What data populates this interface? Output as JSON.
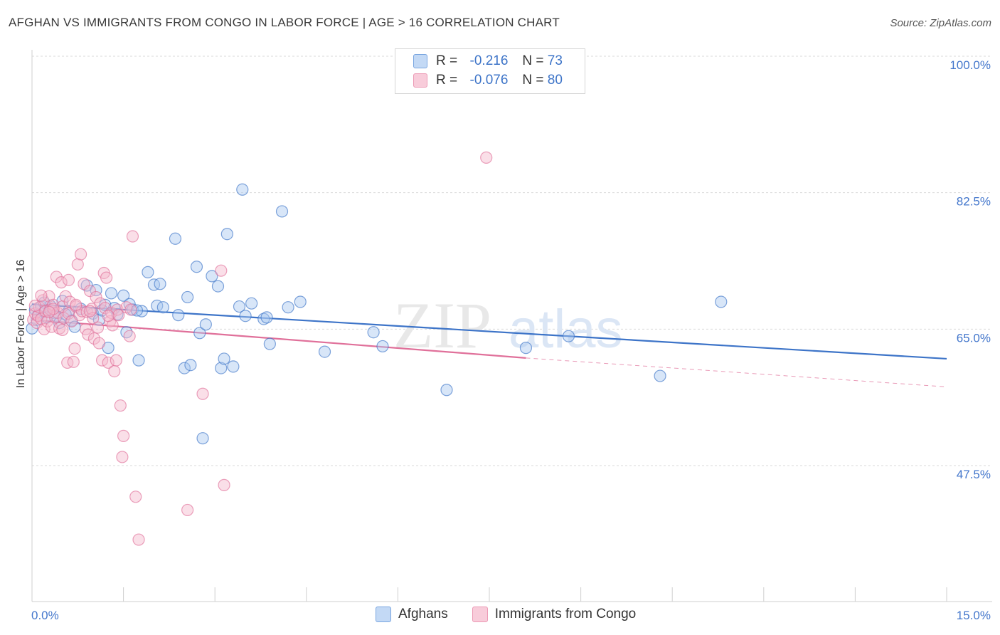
{
  "header": {
    "title": "AFGHAN VS IMMIGRANTS FROM CONGO IN LABOR FORCE | AGE > 16 CORRELATION CHART",
    "source": "Source: ZipAtlas.com"
  },
  "watermark": {
    "zip": "ZIP",
    "atlas": "atlas"
  },
  "legend": {
    "rows": [
      {
        "r_label": "R =",
        "r_value": "-0.216",
        "n_label": "N =",
        "n_value": "73",
        "color": "#a8c8f0"
      },
      {
        "r_label": "R =",
        "r_value": "-0.076",
        "n_label": "N =",
        "n_value": "80",
        "color": "#f5b8cb"
      }
    ]
  },
  "bottom_legend": {
    "items": [
      {
        "label": "Afghans",
        "color": "#a8c8f0"
      },
      {
        "label": "Immigrants from Congo",
        "color": "#f5b8cb"
      }
    ]
  },
  "chart_data": {
    "type": "scatter",
    "title": "AFGHAN VS IMMIGRANTS FROM CONGO IN LABOR FORCE | AGE > 16 CORRELATION CHART",
    "ylabel": "In Labor Force | Age > 16",
    "xlabel": "",
    "xlim": [
      0,
      15
    ],
    "ylim": [
      32,
      102
    ],
    "x_ticks": [
      {
        "value": 0,
        "label": "0.0%"
      },
      {
        "value": 15,
        "label": "15.0%"
      }
    ],
    "y_ticks": [
      {
        "value": 100,
        "label": "100.0%"
      },
      {
        "value": 82.5,
        "label": "82.5%"
      },
      {
        "value": 65,
        "label": "65.0%"
      },
      {
        "value": 47.5,
        "label": "47.5%"
      }
    ],
    "grid": "horizontal dashed",
    "legend_position": "top-center",
    "series": [
      {
        "name": "Afghans",
        "color": "#3d74c8",
        "fill": "#a8c8f0",
        "r": -0.216,
        "n": 73,
        "trend": {
          "x0": 0,
          "y0": 68.2,
          "x1": 15,
          "y1": 61.2
        },
        "points": [
          [
            0.05,
            67.5
          ],
          [
            0.1,
            66.8
          ],
          [
            0.15,
            67.9
          ],
          [
            0.2,
            67.2
          ],
          [
            0.25,
            66.5
          ],
          [
            0.3,
            68.0
          ],
          [
            0.35,
            67.1
          ],
          [
            0.4,
            66.6
          ],
          [
            0.45,
            65.8
          ],
          [
            0.5,
            68.6
          ],
          [
            0.6,
            67.3
          ],
          [
            0.65,
            66.1
          ],
          [
            0.7,
            65.3
          ],
          [
            0.8,
            67.6
          ],
          [
            0.9,
            70.6
          ],
          [
            1.0,
            67.0
          ],
          [
            1.05,
            70.0
          ],
          [
            1.1,
            66.2
          ],
          [
            1.15,
            67.4
          ],
          [
            1.2,
            68.1
          ],
          [
            1.25,
            62.6
          ],
          [
            1.3,
            69.6
          ],
          [
            1.35,
            67.7
          ],
          [
            1.4,
            66.9
          ],
          [
            1.5,
            69.3
          ],
          [
            1.55,
            64.6
          ],
          [
            1.6,
            68.2
          ],
          [
            1.65,
            67.5
          ],
          [
            1.75,
            61.0
          ],
          [
            1.8,
            67.3
          ],
          [
            1.9,
            72.3
          ],
          [
            2.05,
            68.0
          ],
          [
            2.0,
            70.7
          ],
          [
            2.1,
            70.8
          ],
          [
            2.15,
            67.8
          ],
          [
            2.35,
            76.6
          ],
          [
            2.4,
            66.8
          ],
          [
            2.5,
            60.0
          ],
          [
            2.55,
            69.1
          ],
          [
            2.6,
            60.4
          ],
          [
            2.7,
            73.0
          ],
          [
            2.75,
            64.5
          ],
          [
            2.8,
            51.0
          ],
          [
            2.85,
            65.6
          ],
          [
            2.95,
            71.8
          ],
          [
            3.05,
            70.5
          ],
          [
            3.1,
            60.0
          ],
          [
            3.15,
            61.2
          ],
          [
            3.2,
            77.2
          ],
          [
            3.3,
            60.2
          ],
          [
            3.4,
            67.9
          ],
          [
            3.45,
            82.9
          ],
          [
            3.5,
            66.7
          ],
          [
            3.6,
            68.3
          ],
          [
            3.8,
            66.3
          ],
          [
            3.85,
            66.5
          ],
          [
            3.9,
            63.1
          ],
          [
            4.1,
            80.1
          ],
          [
            4.2,
            67.8
          ],
          [
            4.4,
            68.5
          ],
          [
            4.8,
            62.1
          ],
          [
            5.6,
            64.6
          ],
          [
            5.75,
            62.8
          ],
          [
            6.8,
            57.2
          ],
          [
            8.1,
            62.6
          ],
          [
            8.8,
            64.1
          ],
          [
            10.3,
            59.0
          ],
          [
            11.3,
            68.5
          ],
          [
            0.0,
            65.1
          ],
          [
            0.08,
            66.2
          ],
          [
            0.2,
            68.4
          ],
          [
            0.55,
            66.9
          ],
          [
            1.72,
            67.4
          ]
        ]
      },
      {
        "name": "Immigrants from Congo",
        "color": "#e0709a",
        "fill": "#f5b8cb",
        "r": -0.076,
        "n": 80,
        "trend": {
          "x0": 0,
          "y0": 66.2,
          "x1": 8.1,
          "y1": 61.3,
          "x2": 15,
          "y2": 57.6
        },
        "points": [
          [
            0.02,
            66.2
          ],
          [
            0.05,
            67.0
          ],
          [
            0.08,
            65.8
          ],
          [
            0.1,
            66.7
          ],
          [
            0.12,
            67.8
          ],
          [
            0.15,
            66.3
          ],
          [
            0.18,
            68.7
          ],
          [
            0.2,
            65.0
          ],
          [
            0.22,
            67.3
          ],
          [
            0.25,
            66.0
          ],
          [
            0.28,
            69.2
          ],
          [
            0.3,
            67.5
          ],
          [
            0.32,
            65.3
          ],
          [
            0.35,
            68.1
          ],
          [
            0.38,
            66.5
          ],
          [
            0.4,
            71.7
          ],
          [
            0.42,
            67.1
          ],
          [
            0.45,
            65.1
          ],
          [
            0.48,
            71.0
          ],
          [
            0.5,
            67.9
          ],
          [
            0.52,
            66.4
          ],
          [
            0.55,
            69.2
          ],
          [
            0.58,
            60.7
          ],
          [
            0.6,
            67.0
          ],
          [
            0.62,
            68.5
          ],
          [
            0.65,
            66.0
          ],
          [
            0.68,
            60.8
          ],
          [
            0.7,
            62.5
          ],
          [
            0.72,
            67.9
          ],
          [
            0.75,
            73.3
          ],
          [
            0.78,
            66.8
          ],
          [
            0.8,
            74.6
          ],
          [
            0.82,
            67.3
          ],
          [
            0.85,
            70.8
          ],
          [
            0.88,
            65.0
          ],
          [
            0.9,
            67.2
          ],
          [
            0.92,
            64.3
          ],
          [
            0.95,
            69.9
          ],
          [
            0.98,
            67.6
          ],
          [
            1.0,
            66.4
          ],
          [
            1.02,
            63.8
          ],
          [
            1.05,
            69.1
          ],
          [
            1.08,
            65.2
          ],
          [
            1.1,
            63.2
          ],
          [
            1.12,
            68.3
          ],
          [
            1.15,
            61.0
          ],
          [
            1.18,
            72.2
          ],
          [
            1.2,
            67.7
          ],
          [
            1.22,
            71.6
          ],
          [
            1.25,
            60.7
          ],
          [
            1.28,
            66.0
          ],
          [
            1.3,
            67.1
          ],
          [
            1.32,
            65.5
          ],
          [
            1.35,
            59.6
          ],
          [
            1.38,
            61.0
          ],
          [
            1.4,
            67.5
          ],
          [
            1.42,
            66.8
          ],
          [
            1.45,
            55.2
          ],
          [
            1.48,
            48.6
          ],
          [
            1.5,
            51.3
          ],
          [
            1.55,
            67.8
          ],
          [
            1.6,
            64.1
          ],
          [
            1.65,
            76.9
          ],
          [
            1.7,
            43.5
          ],
          [
            1.75,
            38.0
          ],
          [
            2.55,
            41.8
          ],
          [
            2.8,
            56.7
          ],
          [
            3.1,
            72.5
          ],
          [
            3.15,
            45.0
          ],
          [
            7.45,
            87.0
          ],
          [
            0.15,
            69.3
          ],
          [
            0.35,
            67.6
          ],
          [
            0.6,
            71.3
          ],
          [
            0.72,
            68.1
          ],
          [
            0.05,
            68.0
          ],
          [
            0.28,
            67.2
          ],
          [
            0.5,
            64.9
          ],
          [
            0.95,
            67.3
          ],
          [
            1.25,
            66.7
          ],
          [
            1.62,
            67.5
          ]
        ]
      }
    ]
  }
}
